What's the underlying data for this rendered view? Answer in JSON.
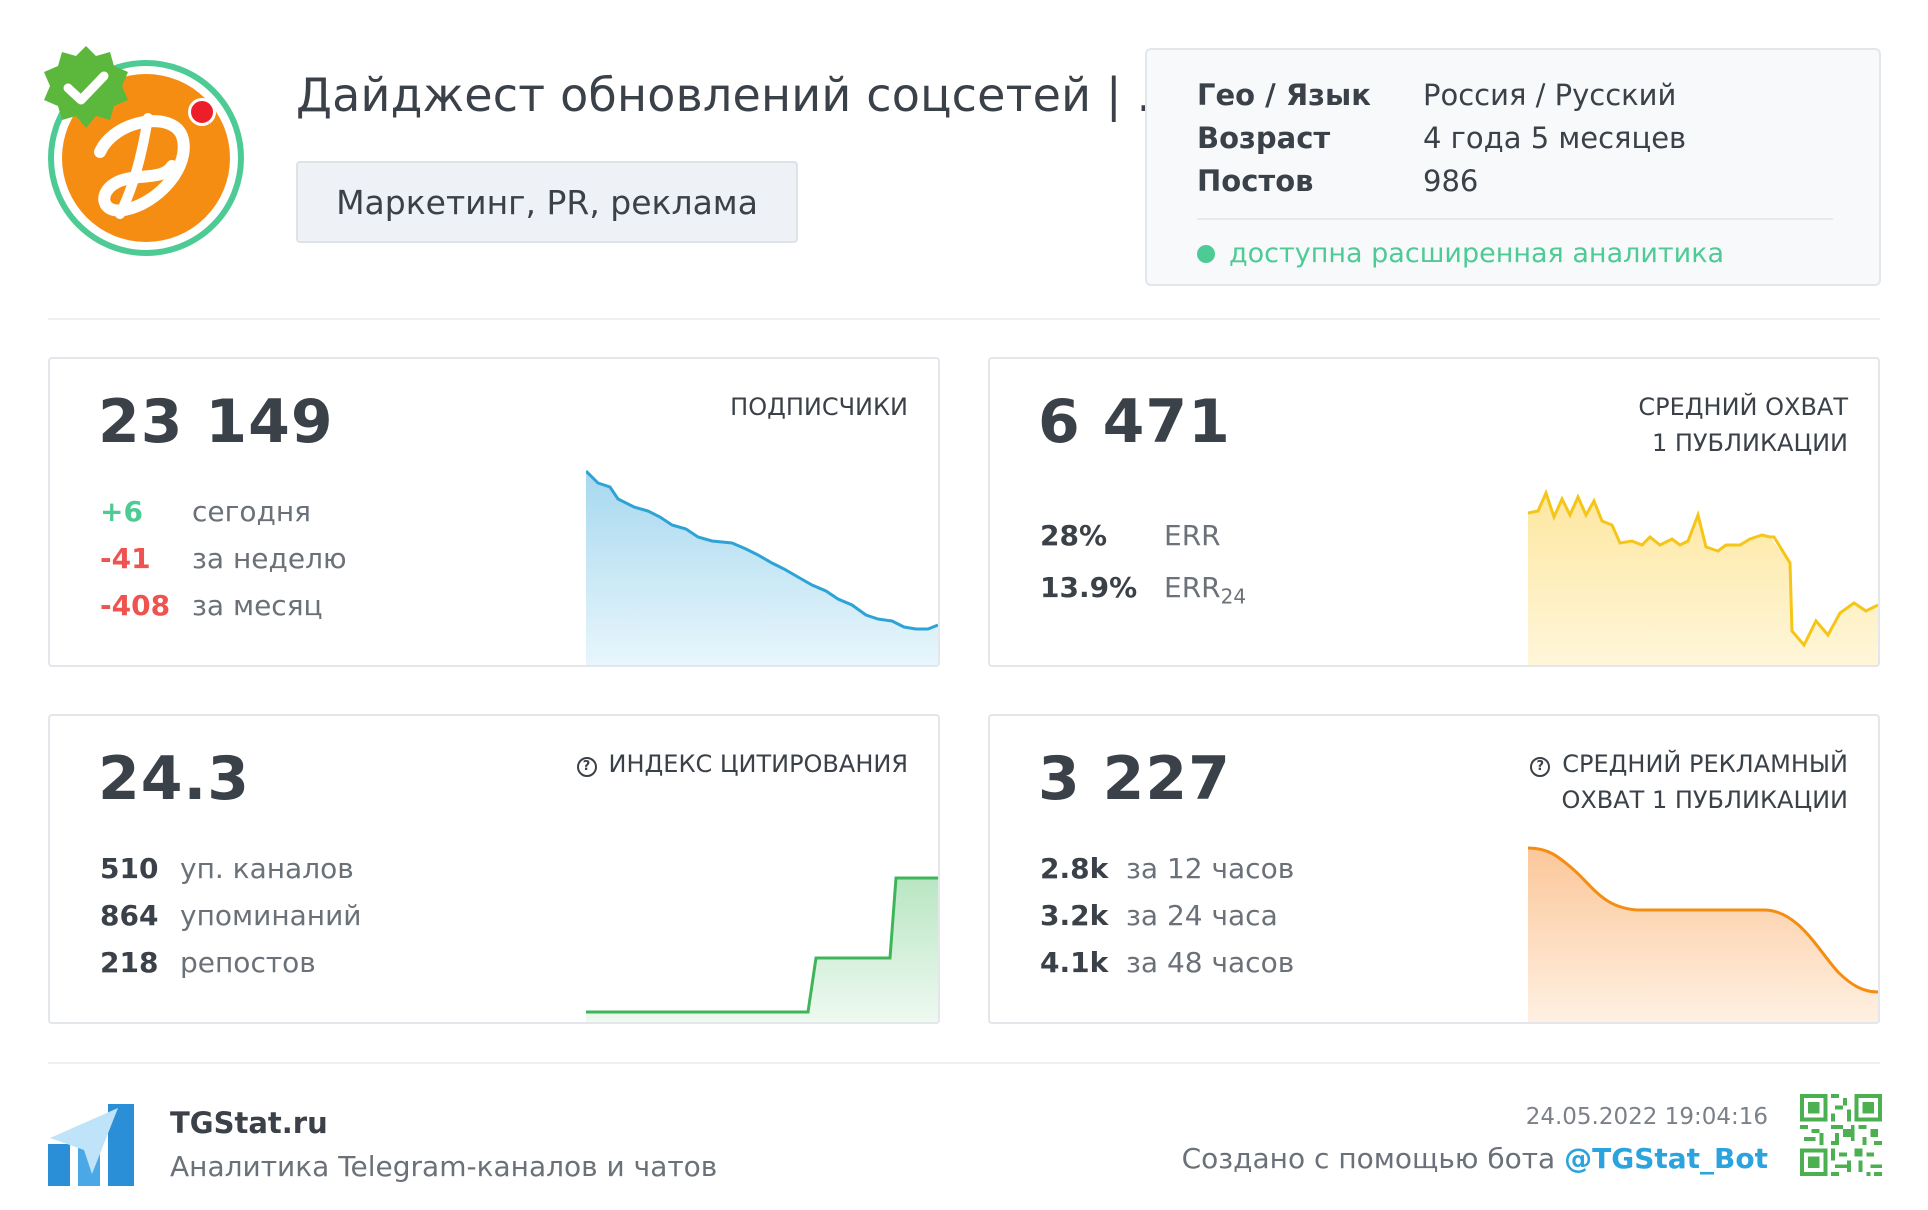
{
  "header": {
    "title": "Дайджест обновлений соцсетей | ...",
    "category": "Маркетинг, PR, реклама"
  },
  "info": {
    "rows": [
      {
        "key": "Гео / Язык",
        "value": "Россия / Русский"
      },
      {
        "key": "Возраст",
        "value": "4 года 5 месяцев"
      },
      {
        "key": "Постов",
        "value": "986"
      }
    ],
    "analytics": "доступна расширенная аналитика"
  },
  "subscribers": {
    "value": "23 149",
    "label": "ПОДПИСЧИКИ",
    "stats": [
      {
        "num": "+6",
        "text": "сегодня"
      },
      {
        "num": "-41",
        "text": "за неделю"
      },
      {
        "num": "-408",
        "text": "за месяц"
      }
    ]
  },
  "reach": {
    "value": "6 471",
    "label_line1": "СРЕДНИЙ ОХВАТ",
    "label_line2": "1 ПУБЛИКАЦИИ",
    "err_value": "28%",
    "err_label": "ERR",
    "err24_value": "13.9%",
    "err24_label": "ERR",
    "err24_sub": "24"
  },
  "citation": {
    "value": "24.3",
    "label": "ИНДЕКС ЦИТИРОВАНИЯ",
    "stats": [
      {
        "num": "510",
        "text": "уп. каналов"
      },
      {
        "num": "864",
        "text": "упоминаний"
      },
      {
        "num": "218",
        "text": "репостов"
      }
    ]
  },
  "ad_reach": {
    "value": "3 227",
    "label_line1": "СРЕДНИЙ РЕКЛАМНЫЙ",
    "label_line2": "ОХВАТ 1 ПУБЛИКАЦИИ",
    "stats": [
      {
        "num": "2.8k",
        "text": "за 12 часов"
      },
      {
        "num": "3.2k",
        "text": "за 24 часа"
      },
      {
        "num": "4.1k",
        "text": "за 48 часов"
      }
    ]
  },
  "footer": {
    "brand": "TGStat.ru",
    "brand_sub": "Аналитика Telegram-каналов и чатов",
    "date": "24.05.2022 19:04:16",
    "made_by": "Создано с помощью бота ",
    "bot": "@TGStat_Bot"
  },
  "colors": {
    "accent_green": "#4ecb95",
    "negative_red": "#ef5350",
    "subscribers_line": "#2ea3d6",
    "reach_line": "#f5c518",
    "citation_line": "#3fb55a",
    "ad_reach_line": "#f58d12",
    "link_blue": "#2aa3df"
  },
  "icons": [
    "verified-badge-icon",
    "help-circle-icon",
    "tgstat-logo-icon",
    "qr-code-icon"
  ]
}
